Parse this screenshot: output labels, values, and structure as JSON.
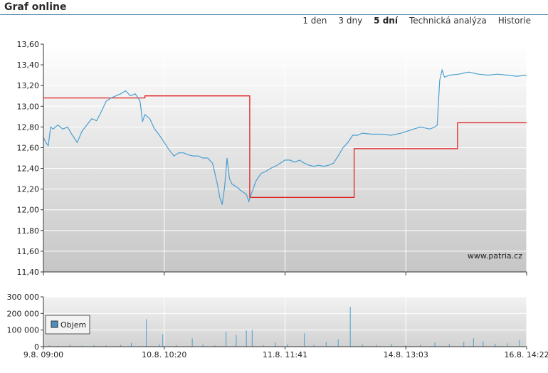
{
  "header": {
    "title": "Graf online",
    "tabs": [
      {
        "label": "1 den",
        "active": false
      },
      {
        "label": "3 dny",
        "active": false
      },
      {
        "label": "5 dní",
        "active": true
      },
      {
        "label": "Technická analýza",
        "active": false
      },
      {
        "label": "Historie",
        "active": false
      }
    ]
  },
  "watermark": "www.patria.cz",
  "legend": {
    "label": "Objem",
    "color": "#4a90c0"
  },
  "colors": {
    "price_line": "#4a9fd0",
    "reference_line": "#e02020",
    "volume": "#4a9fd0",
    "plot_top": "#ffffff",
    "plot_bottom": "#c8c8c8"
  },
  "chart_data": [
    {
      "type": "line",
      "ylim": [
        11.4,
        13.6
      ],
      "yticks": [
        "13,60",
        "13,40",
        "13,20",
        "13,00",
        "12,80",
        "12,60",
        "12,40",
        "12,20",
        "12,00",
        "11,80",
        "11,60",
        "11,40"
      ],
      "xticks": [
        "9.8. 09:00",
        "10.8. 10:20",
        "11.8. 11:41",
        "14.8. 13:03",
        "16.8. 14:22"
      ],
      "grid": true,
      "series": [
        {
          "role": "price",
          "points": [
            [
              0.0,
              12.7
            ],
            [
              0.005,
              12.65
            ],
            [
              0.01,
              12.62
            ],
            [
              0.015,
              12.8
            ],
            [
              0.02,
              12.78
            ],
            [
              0.03,
              12.82
            ],
            [
              0.04,
              12.78
            ],
            [
              0.05,
              12.8
            ],
            [
              0.06,
              12.72
            ],
            [
              0.07,
              12.65
            ],
            [
              0.08,
              12.76
            ],
            [
              0.09,
              12.82
            ],
            [
              0.1,
              12.88
            ],
            [
              0.11,
              12.86
            ],
            [
              0.12,
              12.95
            ],
            [
              0.13,
              13.05
            ],
            [
              0.14,
              13.08
            ],
            [
              0.15,
              13.1
            ],
            [
              0.16,
              13.12
            ],
            [
              0.17,
              13.15
            ],
            [
              0.18,
              13.1
            ],
            [
              0.19,
              13.12
            ],
            [
              0.2,
              13.05
            ],
            [
              0.205,
              12.85
            ],
            [
              0.21,
              12.92
            ],
            [
              0.22,
              12.88
            ],
            [
              0.23,
              12.78
            ],
            [
              0.24,
              12.72
            ],
            [
              0.25,
              12.65
            ],
            [
              0.26,
              12.58
            ],
            [
              0.27,
              12.52
            ],
            [
              0.28,
              12.55
            ],
            [
              0.29,
              12.55
            ],
            [
              0.3,
              12.53
            ],
            [
              0.31,
              12.52
            ],
            [
              0.32,
              12.52
            ],
            [
              0.33,
              12.5
            ],
            [
              0.34,
              12.5
            ],
            [
              0.35,
              12.45
            ],
            [
              0.36,
              12.25
            ],
            [
              0.365,
              12.12
            ],
            [
              0.37,
              12.05
            ],
            [
              0.375,
              12.22
            ],
            [
              0.38,
              12.5
            ],
            [
              0.385,
              12.3
            ],
            [
              0.39,
              12.25
            ],
            [
              0.4,
              12.22
            ],
            [
              0.41,
              12.18
            ],
            [
              0.42,
              12.15
            ],
            [
              0.425,
              12.08
            ],
            [
              0.43,
              12.15
            ],
            [
              0.44,
              12.28
            ],
            [
              0.45,
              12.35
            ],
            [
              0.46,
              12.37
            ],
            [
              0.47,
              12.4
            ],
            [
              0.48,
              12.42
            ],
            [
              0.49,
              12.45
            ],
            [
              0.5,
              12.48
            ],
            [
              0.51,
              12.48
            ],
            [
              0.52,
              12.46
            ],
            [
              0.53,
              12.48
            ],
            [
              0.54,
              12.45
            ],
            [
              0.55,
              12.43
            ],
            [
              0.56,
              12.42
            ],
            [
              0.57,
              12.43
            ],
            [
              0.58,
              12.42
            ],
            [
              0.59,
              12.43
            ],
            [
              0.6,
              12.45
            ],
            [
              0.61,
              12.52
            ],
            [
              0.62,
              12.6
            ],
            [
              0.63,
              12.65
            ],
            [
              0.64,
              12.72
            ],
            [
              0.65,
              12.72
            ],
            [
              0.66,
              12.74
            ],
            [
              0.68,
              12.73
            ],
            [
              0.7,
              12.73
            ],
            [
              0.72,
              12.72
            ],
            [
              0.74,
              12.74
            ],
            [
              0.76,
              12.77
            ],
            [
              0.78,
              12.8
            ],
            [
              0.79,
              12.79
            ],
            [
              0.8,
              12.78
            ],
            [
              0.81,
              12.8
            ],
            [
              0.815,
              12.82
            ],
            [
              0.82,
              13.25
            ],
            [
              0.825,
              13.35
            ],
            [
              0.83,
              13.28
            ],
            [
              0.84,
              13.3
            ],
            [
              0.86,
              13.31
            ],
            [
              0.88,
              13.33
            ],
            [
              0.9,
              13.31
            ],
            [
              0.92,
              13.3
            ],
            [
              0.94,
              13.31
            ],
            [
              0.96,
              13.3
            ],
            [
              0.98,
              13.29
            ],
            [
              1.0,
              13.3
            ]
          ]
        },
        {
          "role": "reference",
          "points": [
            [
              0.0,
              13.08
            ],
            [
              0.21,
              13.08
            ],
            [
              0.21,
              13.1
            ],
            [
              0.427,
              13.1
            ],
            [
              0.427,
              12.12
            ],
            [
              0.643,
              12.12
            ],
            [
              0.643,
              12.59
            ],
            [
              0.857,
              12.59
            ],
            [
              0.857,
              12.84
            ],
            [
              1.0,
              12.84
            ]
          ]
        }
      ]
    },
    {
      "type": "bar",
      "title": "",
      "ylim": [
        0,
        300000
      ],
      "yticks": [
        "300 000",
        "200 000",
        "100 000",
        "0"
      ],
      "series": [
        {
          "name": "Objem",
          "bars": [
            [
              0.012,
              8000
            ],
            [
              0.03,
              5000
            ],
            [
              0.055,
              12000
            ],
            [
              0.08,
              6000
            ],
            [
              0.105,
              9000
            ],
            [
              0.13,
              7000
            ],
            [
              0.16,
              11000
            ],
            [
              0.182,
              22000
            ],
            [
              0.213,
              165000
            ],
            [
              0.24,
              14000
            ],
            [
              0.247,
              75000
            ],
            [
              0.275,
              9000
            ],
            [
              0.308,
              50000
            ],
            [
              0.33,
              12000
            ],
            [
              0.355,
              8000
            ],
            [
              0.378,
              90000
            ],
            [
              0.399,
              70000
            ],
            [
              0.42,
              98000
            ],
            [
              0.432,
              100000
            ],
            [
              0.455,
              10000
            ],
            [
              0.48,
              25000
            ],
            [
              0.505,
              15000
            ],
            [
              0.54,
              80000
            ],
            [
              0.56,
              12000
            ],
            [
              0.585,
              30000
            ],
            [
              0.61,
              45000
            ],
            [
              0.635,
              240000
            ],
            [
              0.66,
              14000
            ],
            [
              0.69,
              10000
            ],
            [
              0.72,
              18000
            ],
            [
              0.75,
              9000
            ],
            [
              0.78,
              12000
            ],
            [
              0.81,
              25000
            ],
            [
              0.84,
              16000
            ],
            [
              0.87,
              28000
            ],
            [
              0.89,
              50000
            ],
            [
              0.91,
              32000
            ],
            [
              0.935,
              18000
            ],
            [
              0.96,
              20000
            ],
            [
              0.985,
              40000
            ]
          ]
        }
      ]
    }
  ]
}
